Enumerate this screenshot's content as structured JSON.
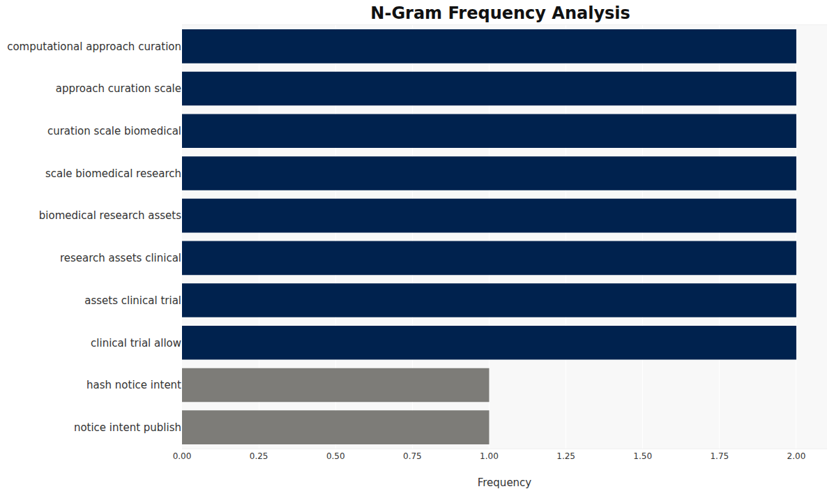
{
  "chart_data": {
    "type": "bar",
    "orientation": "horizontal",
    "title": "N-Gram Frequency Analysis",
    "x_label": "Frequency",
    "categories": [
      "computational approach curation",
      "approach curation scale",
      "curation scale biomedical",
      "scale biomedical research",
      "biomedical research assets",
      "research assets clinical",
      "assets clinical trial",
      "clinical trial allow",
      "hash notice intent",
      "notice intent publish"
    ],
    "values": [
      2,
      2,
      2,
      2,
      2,
      2,
      2,
      2,
      1,
      1
    ],
    "colors": [
      "#00224e",
      "#00224e",
      "#00224e",
      "#00224e",
      "#00224e",
      "#00224e",
      "#00224e",
      "#00224e",
      "#7d7c78",
      "#7d7c78"
    ],
    "xlim": [
      0,
      2.1
    ],
    "xticks": [
      {
        "value": 0,
        "label": "0.00"
      },
      {
        "value": 0.25,
        "label": "0.25"
      },
      {
        "value": 0.5,
        "label": "0.50"
      },
      {
        "value": 0.75,
        "label": "0.75"
      },
      {
        "value": 1,
        "label": "1.00"
      },
      {
        "value": 1.25,
        "label": "1.25"
      },
      {
        "value": 1.5,
        "label": "1.50"
      },
      {
        "value": 1.75,
        "label": "1.75"
      },
      {
        "value": 2,
        "label": "2.00"
      }
    ],
    "grid": true
  }
}
